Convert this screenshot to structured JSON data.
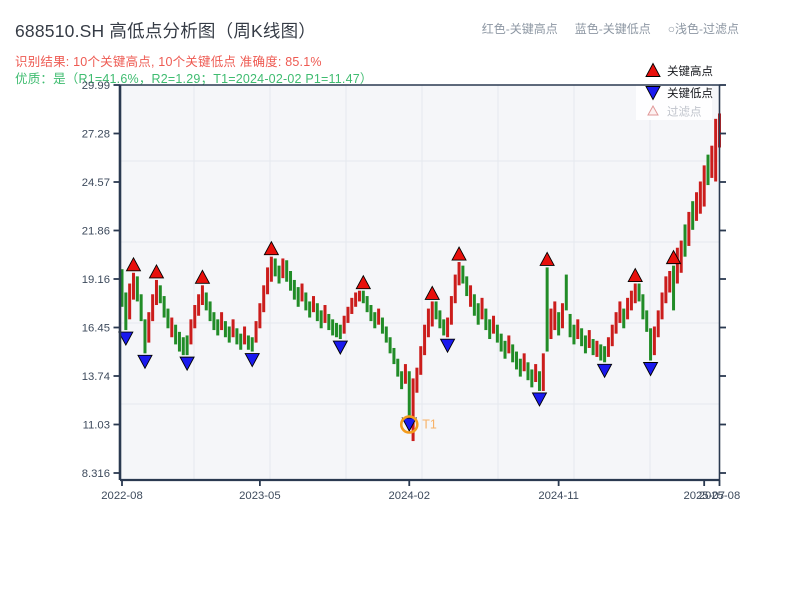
{
  "header": {
    "title": "688510.SH 高低点分析图（周K线图）",
    "subtitle_red": "识别结果: 10个关键高点, 10个关键低点  准确度: 85.1%",
    "subtitle_green": "优质：是（R1=41.6%，R2=1.29；T1=2024-02-02 P1=11.47）",
    "notes": {
      "red": "红色-关键高点",
      "blue": "蓝色-关键低点",
      "filtered": "○浅色-过滤点"
    }
  },
  "colors": {
    "title": "#353b45",
    "subtitle_red": "#ee5a52",
    "subtitle_green": "#3fbc70",
    "note_gray": "#8d97a3",
    "plot_bg": "#f5f6f9",
    "grid": "#e5e8ee",
    "spine": "#2a3950",
    "tick_label": "#3d4a5c",
    "candle_up": "#cb1d1c",
    "candle_down": "#218c27",
    "marker_high": "#e8100c",
    "marker_low": "#1a1aee",
    "marker_edge": "#000000",
    "filtered_fill": "#fdf1f1",
    "filtered_edge": "#e09898",
    "filtered_text": "#c0c4cc",
    "legend_text": "#16181d",
    "t1_ring": "#f39c1e",
    "t1_text": "#f7b267"
  },
  "chart_data": {
    "type": "candlestick",
    "title": "688510.SH 高低点分析图（周K线图）",
    "freq": "weekly",
    "x_start": "2022-08",
    "x_end": "2025-08",
    "ylim": [
      8.316,
      29.99
    ],
    "yticks": [
      "29.99",
      "27.28",
      "24.57",
      "21.86",
      "19.16",
      "16.45",
      "13.74",
      "11.03",
      "8.316"
    ],
    "xticks": [
      {
        "label": "2022-08",
        "week": 0
      },
      {
        "label": "2023-05",
        "week": 36
      },
      {
        "label": "2024-02",
        "week": 75
      },
      {
        "label": "2024-11",
        "week": 114
      },
      {
        "label": "2025-07",
        "week": 152
      },
      {
        "label": "2025-08",
        "week": 156
      }
    ],
    "grid": {
      "h_y": [
        161,
        242,
        323,
        404
      ],
      "v_x": [
        194,
        270,
        346,
        422,
        498,
        574,
        650
      ]
    },
    "legend": [
      {
        "label": "关键高点",
        "marker": "up-red"
      },
      {
        "label": "关键低点",
        "marker": "down-blue"
      },
      {
        "label": "过滤点",
        "marker": "up-outline"
      }
    ],
    "bars_format": "[low, high, color r=up/g=down] per week",
    "bars": [
      [
        17.6,
        19.7,
        "g"
      ],
      [
        16.3,
        18.4,
        "g"
      ],
      [
        16.9,
        18.9,
        "r"
      ],
      [
        18.0,
        19.5,
        "r"
      ],
      [
        17.9,
        19.3,
        "g"
      ],
      [
        16.8,
        18.3,
        "g"
      ],
      [
        15.0,
        16.9,
        "g"
      ],
      [
        15.6,
        17.3,
        "r"
      ],
      [
        16.8,
        18.3,
        "r"
      ],
      [
        17.7,
        19.1,
        "r"
      ],
      [
        17.8,
        18.8,
        "g"
      ],
      [
        17.0,
        18.2,
        "g"
      ],
      [
        16.4,
        17.5,
        "g"
      ],
      [
        15.9,
        17.0,
        "r"
      ],
      [
        15.5,
        16.6,
        "g"
      ],
      [
        15.1,
        16.2,
        "g"
      ],
      [
        14.9,
        15.9,
        "g"
      ],
      [
        14.9,
        16.0,
        "g"
      ],
      [
        15.5,
        16.9,
        "r"
      ],
      [
        16.4,
        17.7,
        "r"
      ],
      [
        17.1,
        18.3,
        "r"
      ],
      [
        17.7,
        18.8,
        "r"
      ],
      [
        17.4,
        18.4,
        "g"
      ],
      [
        16.8,
        17.9,
        "g"
      ],
      [
        16.3,
        17.3,
        "g"
      ],
      [
        16.0,
        16.9,
        "g"
      ],
      [
        16.3,
        17.3,
        "r"
      ],
      [
        15.9,
        16.8,
        "g"
      ],
      [
        15.6,
        16.5,
        "g"
      ],
      [
        15.9,
        16.9,
        "r"
      ],
      [
        15.5,
        16.4,
        "g"
      ],
      [
        15.2,
        16.1,
        "g"
      ],
      [
        15.5,
        16.5,
        "r"
      ],
      [
        15.2,
        16.0,
        "g"
      ],
      [
        15.1,
        15.9,
        "g"
      ],
      [
        15.6,
        16.8,
        "r"
      ],
      [
        16.4,
        17.8,
        "r"
      ],
      [
        17.3,
        18.8,
        "r"
      ],
      [
        18.3,
        19.8,
        "r"
      ],
      [
        19.0,
        20.4,
        "r"
      ],
      [
        19.3,
        20.3,
        "g"
      ],
      [
        18.9,
        19.9,
        "g"
      ],
      [
        19.2,
        20.3,
        "r"
      ],
      [
        19.0,
        20.2,
        "g"
      ],
      [
        18.5,
        19.6,
        "g"
      ],
      [
        18.0,
        19.1,
        "g"
      ],
      [
        17.6,
        18.7,
        "g"
      ],
      [
        17.9,
        18.9,
        "r"
      ],
      [
        17.4,
        18.4,
        "g"
      ],
      [
        17.0,
        17.9,
        "g"
      ],
      [
        17.3,
        18.2,
        "r"
      ],
      [
        16.8,
        17.8,
        "g"
      ],
      [
        16.4,
        17.4,
        "g"
      ],
      [
        16.7,
        17.7,
        "r"
      ],
      [
        16.3,
        17.2,
        "g"
      ],
      [
        16.0,
        16.9,
        "g"
      ],
      [
        15.9,
        16.7,
        "g"
      ],
      [
        15.8,
        16.6,
        "g"
      ],
      [
        16.1,
        17.1,
        "r"
      ],
      [
        16.7,
        17.6,
        "r"
      ],
      [
        17.2,
        18.1,
        "r"
      ],
      [
        17.6,
        18.4,
        "r"
      ],
      [
        17.9,
        18.5,
        "r"
      ],
      [
        17.8,
        18.5,
        "g"
      ],
      [
        17.3,
        18.2,
        "g"
      ],
      [
        16.8,
        17.7,
        "g"
      ],
      [
        16.4,
        17.3,
        "g"
      ],
      [
        16.6,
        17.5,
        "r"
      ],
      [
        16.1,
        17.0,
        "g"
      ],
      [
        15.6,
        16.5,
        "g"
      ],
      [
        15.0,
        15.9,
        "g"
      ],
      [
        14.4,
        15.3,
        "g"
      ],
      [
        13.7,
        14.7,
        "g"
      ],
      [
        13.0,
        14.0,
        "g"
      ],
      [
        13.3,
        14.4,
        "r"
      ],
      [
        11.5,
        14.0,
        "g"
      ],
      [
        10.1,
        13.6,
        "r"
      ],
      [
        12.8,
        14.2,
        "r"
      ],
      [
        13.8,
        15.4,
        "r"
      ],
      [
        14.9,
        16.6,
        "r"
      ],
      [
        15.9,
        17.5,
        "r"
      ],
      [
        16.5,
        17.9,
        "r"
      ],
      [
        16.9,
        17.9,
        "g"
      ],
      [
        16.4,
        17.4,
        "g"
      ],
      [
        16.0,
        16.9,
        "g"
      ],
      [
        15.9,
        17.0,
        "r"
      ],
      [
        16.6,
        18.2,
        "r"
      ],
      [
        17.8,
        19.4,
        "r"
      ],
      [
        18.8,
        20.1,
        "r"
      ],
      [
        18.9,
        19.9,
        "g"
      ],
      [
        18.2,
        19.3,
        "g"
      ],
      [
        17.6,
        18.8,
        "r"
      ],
      [
        17.1,
        18.3,
        "g"
      ],
      [
        16.6,
        17.8,
        "g"
      ],
      [
        16.9,
        18.1,
        "r"
      ],
      [
        16.3,
        17.5,
        "g"
      ],
      [
        15.8,
        16.9,
        "g"
      ],
      [
        16.1,
        17.1,
        "r"
      ],
      [
        15.6,
        16.6,
        "g"
      ],
      [
        15.1,
        16.1,
        "g"
      ],
      [
        14.7,
        15.7,
        "g"
      ],
      [
        15.0,
        16.0,
        "r"
      ],
      [
        14.5,
        15.5,
        "g"
      ],
      [
        14.1,
        15.1,
        "g"
      ],
      [
        13.7,
        14.7,
        "g"
      ],
      [
        14.0,
        15.0,
        "r"
      ],
      [
        13.5,
        14.5,
        "g"
      ],
      [
        13.1,
        14.1,
        "g"
      ],
      [
        13.4,
        14.4,
        "r"
      ],
      [
        12.9,
        14.0,
        "g"
      ],
      [
        12.9,
        15.0,
        "r"
      ],
      [
        15.1,
        19.8,
        "g"
      ],
      [
        15.8,
        17.5,
        "r"
      ],
      [
        16.3,
        17.9,
        "r"
      ],
      [
        16.0,
        17.3,
        "g"
      ],
      [
        16.4,
        17.8,
        "r"
      ],
      [
        17.4,
        19.4,
        "g"
      ],
      [
        15.9,
        17.2,
        "g"
      ],
      [
        15.5,
        16.6,
        "g"
      ],
      [
        15.8,
        16.9,
        "r"
      ],
      [
        15.4,
        16.4,
        "g"
      ],
      [
        15.0,
        16.0,
        "g"
      ],
      [
        15.3,
        16.3,
        "r"
      ],
      [
        14.9,
        15.8,
        "g"
      ],
      [
        14.8,
        15.7,
        "r"
      ],
      [
        14.6,
        15.5,
        "g"
      ],
      [
        14.5,
        15.4,
        "g"
      ],
      [
        14.8,
        15.9,
        "r"
      ],
      [
        15.4,
        16.6,
        "r"
      ],
      [
        16.1,
        17.3,
        "r"
      ],
      [
        16.7,
        17.9,
        "r"
      ],
      [
        16.4,
        17.5,
        "g"
      ],
      [
        16.9,
        18.1,
        "r"
      ],
      [
        17.4,
        18.5,
        "r"
      ],
      [
        17.8,
        18.9,
        "r"
      ],
      [
        17.9,
        18.9,
        "g"
      ],
      [
        16.9,
        18.3,
        "g"
      ],
      [
        16.2,
        17.4,
        "g"
      ],
      [
        14.6,
        16.4,
        "g"
      ],
      [
        14.9,
        16.5,
        "r"
      ],
      [
        15.9,
        17.4,
        "r"
      ],
      [
        16.9,
        18.4,
        "r"
      ],
      [
        17.8,
        19.3,
        "r"
      ],
      [
        18.4,
        19.6,
        "r"
      ],
      [
        17.4,
        19.9,
        "g"
      ],
      [
        18.9,
        20.9,
        "r"
      ],
      [
        19.5,
        21.3,
        "r"
      ],
      [
        20.4,
        22.2,
        "g"
      ],
      [
        21.0,
        22.9,
        "r"
      ],
      [
        21.9,
        23.5,
        "g"
      ],
      [
        22.4,
        24.0,
        "r"
      ],
      [
        22.8,
        24.6,
        "r"
      ],
      [
        23.2,
        25.5,
        "r"
      ],
      [
        24.4,
        26.1,
        "g"
      ],
      [
        24.8,
        26.6,
        "r"
      ],
      [
        24.6,
        28.1,
        "r"
      ],
      [
        26.5,
        28.4,
        "r"
      ]
    ],
    "key_highs": [
      {
        "week": 3,
        "price": 19.5
      },
      {
        "week": 9,
        "price": 19.1
      },
      {
        "week": 21,
        "price": 18.8
      },
      {
        "week": 39,
        "price": 20.4
      },
      {
        "week": 63,
        "price": 18.5
      },
      {
        "week": 81,
        "price": 17.9
      },
      {
        "week": 88,
        "price": 20.1
      },
      {
        "week": 111,
        "price": 19.8
      },
      {
        "week": 134,
        "price": 18.9
      },
      {
        "week": 144,
        "price": 19.9
      }
    ],
    "key_lows": [
      {
        "week": 1,
        "price": 16.3
      },
      {
        "week": 6,
        "price": 15.0
      },
      {
        "week": 17,
        "price": 14.9
      },
      {
        "week": 34,
        "price": 15.1
      },
      {
        "week": 57,
        "price": 15.8
      },
      {
        "week": 75,
        "price": 11.5
      },
      {
        "week": 85,
        "price": 15.9
      },
      {
        "week": 109,
        "price": 12.9
      },
      {
        "week": 126,
        "price": 14.5
      },
      {
        "week": 138,
        "price": 14.6
      }
    ],
    "t1": {
      "week": 75,
      "price": 11.5,
      "label": "T1",
      "date": "2024-02-02",
      "p1": 11.47
    }
  }
}
